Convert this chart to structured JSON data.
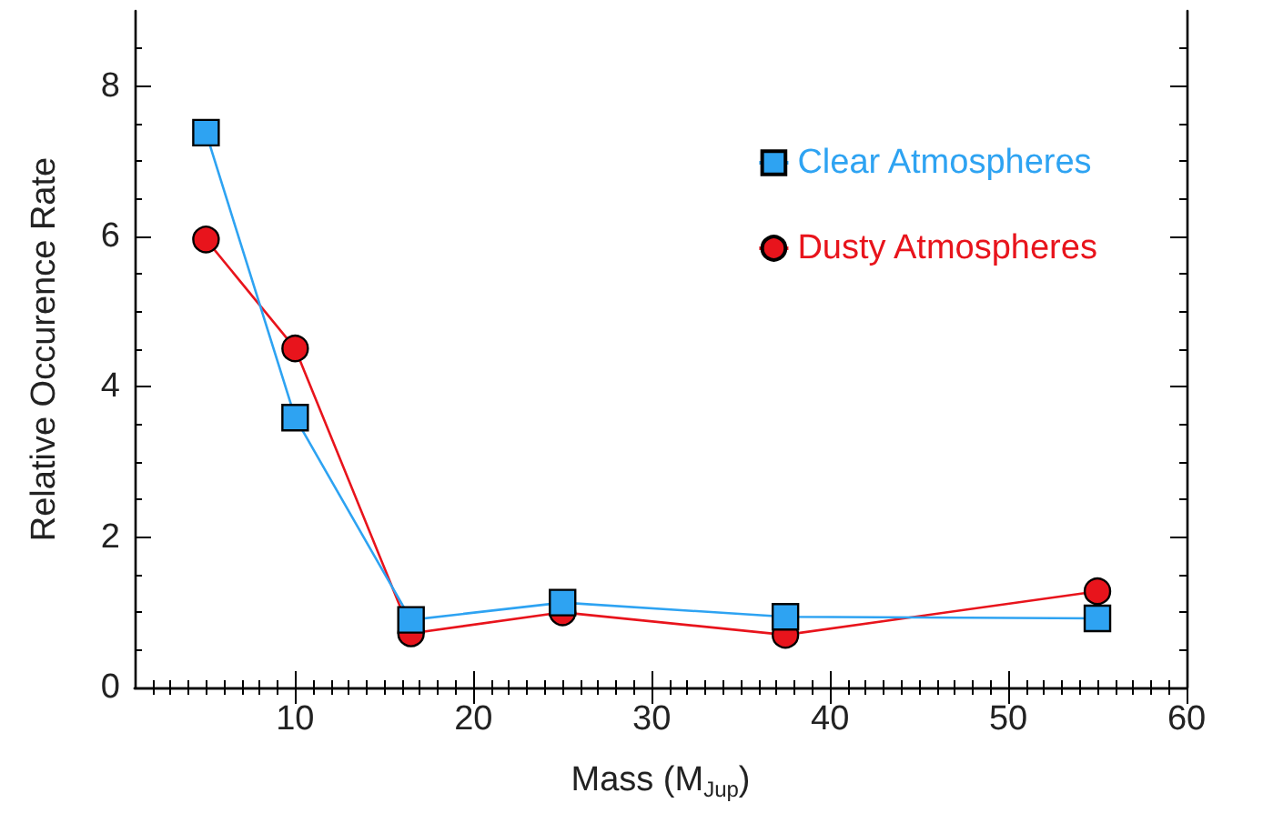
{
  "chart_data": {
    "type": "line",
    "xlabel": "Mass (M$_{Jup}$)",
    "ylabel": "Relative Occurence Rate",
    "xlim": [
      1,
      60
    ],
    "xticks": [
      10,
      20,
      30,
      40,
      50,
      60
    ],
    "ylim": [
      0,
      9
    ],
    "yticks": [
      0,
      2,
      4,
      6,
      8
    ],
    "grid": false,
    "legend": "top right",
    "series": [
      {
        "name": "Clear Atmospheres",
        "color": "#2ea3f2",
        "marker": "square",
        "x": [
          5,
          10,
          16.5,
          25,
          37.5,
          55
        ],
        "values": [
          7.38,
          3.59,
          0.9,
          1.13,
          0.94,
          0.92
        ]
      },
      {
        "name": "Dusty Atmospheres",
        "color": "#e8141c",
        "marker": "circle",
        "x": [
          5,
          10,
          16.5,
          25,
          37.5,
          55
        ],
        "values": [
          5.96,
          4.51,
          0.72,
          1.0,
          0.7,
          1.28
        ]
      }
    ]
  }
}
